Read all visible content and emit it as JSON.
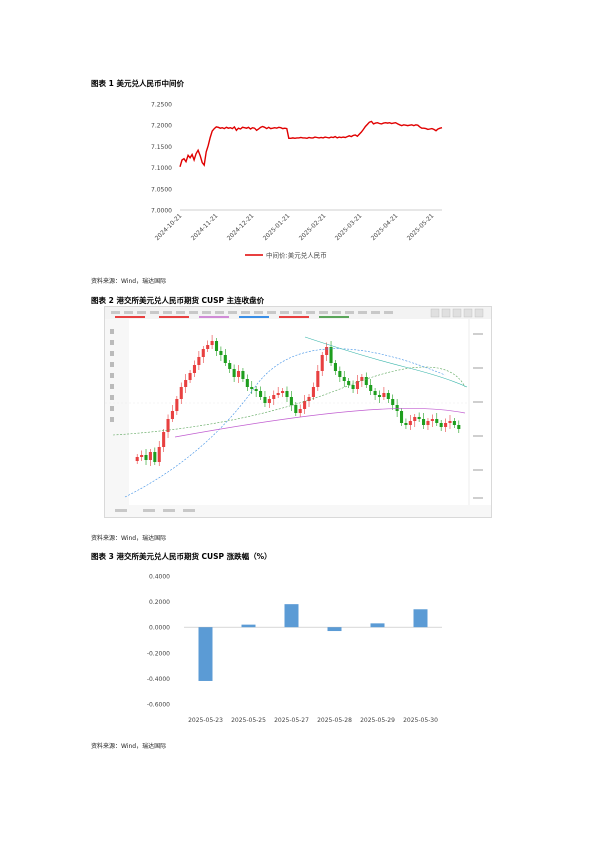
{
  "chart_data": [
    {
      "type": "line",
      "caption": "图表 1 美元兑人民币中间价",
      "series": [
        {
          "name": "中间价:美元兑人民币"
        }
      ],
      "y_ticks": [
        "7.2500",
        "7.2000",
        "7.1500",
        "7.1000",
        "7.0500",
        "7.0000"
      ],
      "ylim": [
        7.0,
        7.25
      ],
      "x_ticks": [
        "2024-10-21",
        "2024-11-21",
        "2024-12-21",
        "2025-01-21",
        "2025-02-21",
        "2025-03-21",
        "2025-04-21",
        "2025-05-21"
      ],
      "values": [
        7.102,
        7.118,
        7.121,
        7.114,
        7.129,
        7.123,
        7.131,
        7.118,
        7.133,
        7.141,
        7.128,
        7.112,
        7.106,
        7.137,
        7.152,
        7.171,
        7.186,
        7.192,
        7.196,
        7.195,
        7.193,
        7.194,
        7.192,
        7.195,
        7.193,
        7.194,
        7.192,
        7.196,
        7.188,
        7.193,
        7.191,
        7.195,
        7.194,
        7.193,
        7.195,
        7.191,
        7.194,
        7.193,
        7.188,
        7.191,
        7.195,
        7.197,
        7.195,
        7.192,
        7.195,
        7.192,
        7.193,
        7.194,
        7.193,
        7.195,
        7.194,
        7.192,
        7.193,
        7.192,
        7.169,
        7.169,
        7.17,
        7.169,
        7.17,
        7.17,
        7.171,
        7.17,
        7.17,
        7.169,
        7.171,
        7.17,
        7.17,
        7.172,
        7.171,
        7.17,
        7.171,
        7.17,
        7.172,
        7.171,
        7.17,
        7.172,
        7.171,
        7.173,
        7.17,
        7.172,
        7.171,
        7.172,
        7.171,
        7.173,
        7.175,
        7.173,
        7.176,
        7.177,
        7.174,
        7.179,
        7.184,
        7.19,
        7.197,
        7.202,
        7.207,
        7.209,
        7.203,
        7.205,
        7.206,
        7.204,
        7.203,
        7.205,
        7.206,
        7.205,
        7.206,
        7.204,
        7.205,
        7.206,
        7.203,
        7.201,
        7.199,
        7.201,
        7.2,
        7.199,
        7.2,
        7.201,
        7.199,
        7.201,
        7.2,
        7.196,
        7.193,
        7.193,
        7.192,
        7.19,
        7.191,
        7.192,
        7.19,
        7.187,
        7.191,
        7.193,
        7.194
      ]
    },
    {
      "type": "bar",
      "caption": "图表 3 港交所美元兑人民币期货 CUSP 涨跌幅（%）",
      "categories": [
        "2025-05-23",
        "2025-05-25",
        "2025-05-27",
        "2025-05-28",
        "2025-05-29",
        "2025-05-30"
      ],
      "values": [
        -0.42,
        0.02,
        0.18,
        -0.03,
        0.03,
        0.14
      ],
      "y_ticks": [
        "0.4000",
        "0.2000",
        "0.0000",
        "-0.2000",
        "-0.4000",
        "-0.6000"
      ],
      "ylim": [
        -0.6,
        0.4
      ]
    }
  ],
  "captions": {
    "fig1": "图表 1 美元兑人民币中间价",
    "fig2": "图表 2 港交所美元兑人民币期货 CUSP 主连收盘价",
    "fig3": "图表 3 港交所美元兑人民币期货 CUSP 涨跌幅（%）"
  },
  "sources": {
    "fig1": "资料来源：Wind，瑞达国际",
    "fig2": "资料来源：Wind，瑞达国际",
    "fig3": "资料来源：Wind，瑞达国际"
  },
  "colors": {
    "line": "#e00000",
    "bar": "#5b9bd5",
    "up": "#e84040",
    "down": "#1e9e1e"
  }
}
